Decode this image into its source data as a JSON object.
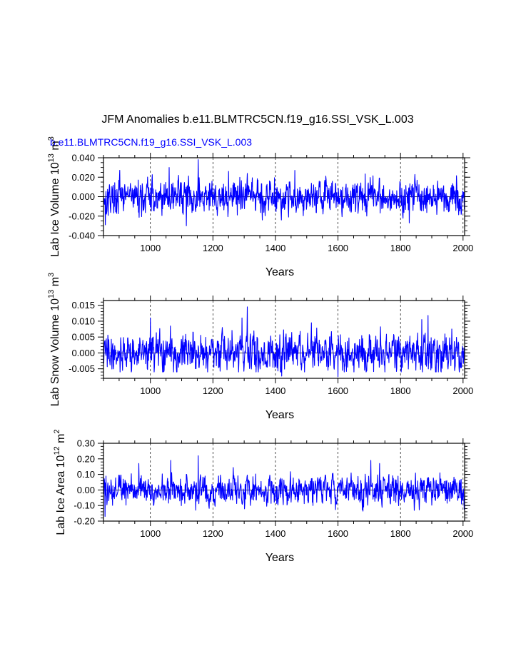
{
  "title": "JFM Anomalies b.e11.BLMTRC5CN.f19_g16.SSI_VSK_L.003",
  "subtitle": "b.e11.BLMTRC5CN.f19_g16.SSI_VSK_L.003",
  "colors": {
    "series": "#0000ff",
    "axis": "#000000",
    "grid": "#000000",
    "subtitle": "#0000ff"
  },
  "chart_data": [
    {
      "type": "line",
      "name": "ice-volume",
      "ylabel_main": "Lab Ice Volume 10",
      "ylabel_exp": "13",
      "ylabel_unit": " m",
      "ylabel_unit_exp": "3",
      "xlabel": "Years",
      "xlim": [
        850,
        2005
      ],
      "ylim": [
        -0.04,
        0.04
      ],
      "xticks": [
        1000,
        1200,
        1400,
        1600,
        1800,
        2000
      ],
      "xtick_labels": [
        "1000",
        "1200",
        "1400",
        "1600",
        "1800",
        "2000"
      ],
      "yticks": [
        -0.04,
        -0.02,
        0.0,
        0.02,
        0.04
      ],
      "ytick_labels": [
        "-0.040",
        "-0.020",
        "0.000",
        "0.020",
        "0.040"
      ],
      "yminor_step": 0.005,
      "grid_x": [
        1000,
        1200,
        1400,
        1600,
        1800,
        2000
      ],
      "x_start": 850,
      "x_step": 1,
      "n_points": 1156,
      "noise_amplitude": 0.0085,
      "seed": 17,
      "value_range": [
        -0.03,
        0.038
      ],
      "peaks": [
        [
          1153,
          0.038
        ],
        [
          1060,
          0.03
        ],
        [
          1462,
          0.027
        ],
        [
          1250,
          0.026
        ],
        [
          1115,
          -0.03
        ],
        [
          856,
          -0.029
        ],
        [
          1828,
          -0.027
        ]
      ]
    },
    {
      "type": "line",
      "name": "snow-volume",
      "ylabel_main": "Lab Snow Volume 10",
      "ylabel_exp": "13",
      "ylabel_unit": " m",
      "ylabel_unit_exp": "3",
      "xlabel": "Years",
      "xlim": [
        850,
        2005
      ],
      "ylim": [
        -0.008,
        0.0165
      ],
      "xticks": [
        1000,
        1200,
        1400,
        1600,
        1800,
        2000
      ],
      "xtick_labels": [
        "1000",
        "1200",
        "1400",
        "1600",
        "1800",
        "2000"
      ],
      "yticks": [
        -0.005,
        0.0,
        0.005,
        0.01,
        0.015
      ],
      "ytick_labels": [
        "-0.005",
        "0.000",
        "0.005",
        "0.010",
        "0.015"
      ],
      "yminor_step": 0.001,
      "grid_x": [
        1000,
        1200,
        1400,
        1600,
        1800,
        2000
      ],
      "x_start": 850,
      "x_step": 1,
      "n_points": 1156,
      "noise_amplitude": 0.0028,
      "seed": 41,
      "value_range": [
        -0.0075,
        0.0145
      ],
      "peaks": [
        [
          1310,
          0.0145
        ],
        [
          1293,
          0.011
        ],
        [
          1000,
          0.011
        ],
        [
          1888,
          0.0118
        ],
        [
          1868,
          0.0105
        ],
        [
          1515,
          0.0095
        ],
        [
          1600,
          -0.0075
        ],
        [
          1420,
          -0.0073
        ]
      ]
    },
    {
      "type": "line",
      "name": "ice-area",
      "ylabel_main": "Lab Ice Area 10",
      "ylabel_exp": "12",
      "ylabel_unit": " m",
      "ylabel_unit_exp": "2",
      "xlabel": "Years",
      "xlim": [
        850,
        2005
      ],
      "ylim": [
        -0.2,
        0.3
      ],
      "xticks": [
        1000,
        1200,
        1400,
        1600,
        1800,
        2000
      ],
      "xtick_labels": [
        "1000",
        "1200",
        "1400",
        "1600",
        "1800",
        "2000"
      ],
      "yticks": [
        -0.2,
        -0.1,
        0.0,
        0.1,
        0.2,
        0.3
      ],
      "ytick_labels": [
        "-0.20",
        "-0.10",
        "0.00",
        "0.10",
        "0.20",
        "0.30"
      ],
      "yminor_step": 0.02,
      "grid_x": [
        1000,
        1200,
        1400,
        1600,
        1800,
        2000
      ],
      "x_start": 850,
      "x_step": 1,
      "n_points": 1156,
      "noise_amplitude": 0.045,
      "seed": 73,
      "value_range": [
        -0.17,
        0.22
      ],
      "peaks": [
        [
          1153,
          0.22
        ],
        [
          1065,
          0.19
        ],
        [
          1705,
          0.19
        ],
        [
          1733,
          0.17
        ],
        [
          963,
          0.17
        ],
        [
          855,
          -0.17
        ],
        [
          1145,
          -0.13
        ]
      ]
    }
  ]
}
